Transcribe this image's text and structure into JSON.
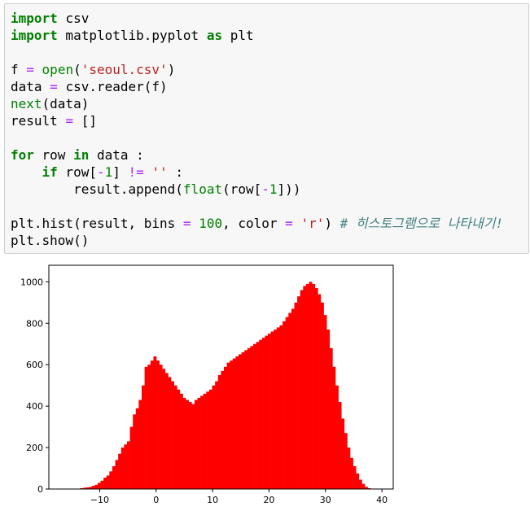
{
  "code_cell": {
    "lines": [
      [
        {
          "t": "import",
          "c": "kw"
        },
        {
          "t": " csv",
          "c": ""
        }
      ],
      [
        {
          "t": "import",
          "c": "kw"
        },
        {
          "t": " matplotlib.pyplot ",
          "c": ""
        },
        {
          "t": "as",
          "c": "kw"
        },
        {
          "t": " plt",
          "c": ""
        }
      ],
      [],
      [
        {
          "t": "f ",
          "c": ""
        },
        {
          "t": "=",
          "c": "op"
        },
        {
          "t": " ",
          "c": ""
        },
        {
          "t": "open",
          "c": "bi"
        },
        {
          "t": "(",
          "c": ""
        },
        {
          "t": "'seoul.csv'",
          "c": "st"
        },
        {
          "t": ")",
          "c": ""
        }
      ],
      [
        {
          "t": "data ",
          "c": ""
        },
        {
          "t": "=",
          "c": "op"
        },
        {
          "t": " csv.reader(f)",
          "c": ""
        }
      ],
      [
        {
          "t": "next",
          "c": "bi"
        },
        {
          "t": "(data)",
          "c": ""
        }
      ],
      [
        {
          "t": "result ",
          "c": ""
        },
        {
          "t": "=",
          "c": "op"
        },
        {
          "t": " []",
          "c": ""
        }
      ],
      [],
      [
        {
          "t": "for",
          "c": "kw"
        },
        {
          "t": " row ",
          "c": ""
        },
        {
          "t": "in",
          "c": "kw"
        },
        {
          "t": " data :",
          "c": ""
        }
      ],
      [
        {
          "t": "    ",
          "c": ""
        },
        {
          "t": "if",
          "c": "kw"
        },
        {
          "t": " row[",
          "c": ""
        },
        {
          "t": "-",
          "c": "op"
        },
        {
          "t": "1",
          "c": "nu"
        },
        {
          "t": "] ",
          "c": ""
        },
        {
          "t": "!=",
          "c": "op"
        },
        {
          "t": " ",
          "c": ""
        },
        {
          "t": "''",
          "c": "st"
        },
        {
          "t": " :",
          "c": ""
        }
      ],
      [
        {
          "t": "        result.append(",
          "c": ""
        },
        {
          "t": "float",
          "c": "bi"
        },
        {
          "t": "(row[",
          "c": ""
        },
        {
          "t": "-",
          "c": "op"
        },
        {
          "t": "1",
          "c": "nu"
        },
        {
          "t": "]))",
          "c": ""
        }
      ],
      [],
      [
        {
          "t": "plt.hist(result, bins ",
          "c": ""
        },
        {
          "t": "=",
          "c": "op"
        },
        {
          "t": " ",
          "c": ""
        },
        {
          "t": "100",
          "c": "nu"
        },
        {
          "t": ", color ",
          "c": ""
        },
        {
          "t": "=",
          "c": "op"
        },
        {
          "t": " ",
          "c": ""
        },
        {
          "t": "'r'",
          "c": "st"
        },
        {
          "t": ") ",
          "c": ""
        },
        {
          "t": "# 히스토그램으로 나타내기!",
          "c": "cm"
        }
      ],
      [
        {
          "t": "plt.show()",
          "c": ""
        }
      ]
    ]
  },
  "chart_data": {
    "type": "bar",
    "bar_color": "#ff0000",
    "title": "",
    "xlabel": "",
    "ylabel": "",
    "xlim": [
      -19,
      42
    ],
    "ylim": [
      0,
      1080
    ],
    "xticks": [
      -10,
      0,
      10,
      20,
      30,
      40
    ],
    "yticks": [
      0,
      200,
      400,
      600,
      800,
      1000
    ],
    "bins": 100,
    "bin_start": -14,
    "bin_width": 0.52,
    "values": [
      2,
      4,
      6,
      8,
      10,
      15,
      20,
      30,
      40,
      55,
      65,
      85,
      110,
      140,
      170,
      200,
      215,
      230,
      300,
      360,
      390,
      430,
      500,
      590,
      600,
      620,
      640,
      620,
      600,
      580,
      560,
      540,
      520,
      500,
      480,
      460,
      440,
      430,
      420,
      410,
      430,
      440,
      450,
      460,
      470,
      480,
      500,
      520,
      550,
      570,
      590,
      610,
      620,
      630,
      640,
      650,
      660,
      670,
      680,
      690,
      700,
      710,
      720,
      730,
      740,
      750,
      760,
      770,
      780,
      790,
      810,
      830,
      850,
      870,
      900,
      930,
      960,
      980,
      990,
      1000,
      990,
      970,
      940,
      900,
      840,
      770,
      680,
      590,
      500,
      420,
      340,
      270,
      200,
      150,
      110,
      75,
      45,
      25,
      10,
      4
    ]
  }
}
